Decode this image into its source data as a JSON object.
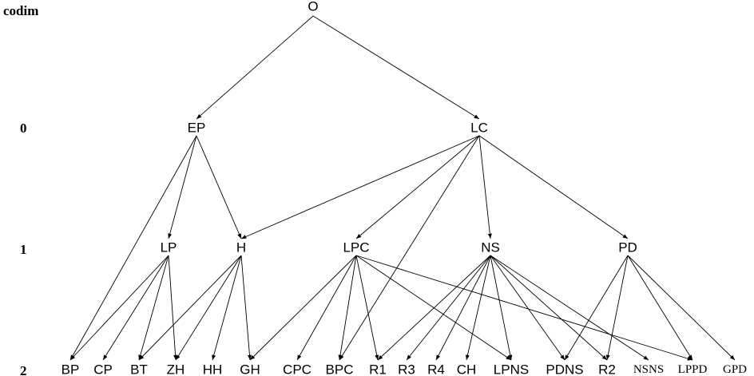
{
  "codim_header": "codim",
  "levels": [
    {
      "id": "L0",
      "label": "0"
    },
    {
      "id": "L1",
      "label": "1"
    },
    {
      "id": "L2",
      "label": "2"
    }
  ],
  "nodes": [
    {
      "id": "O",
      "label": "O",
      "level": "root"
    },
    {
      "id": "EP",
      "label": "EP",
      "level": "L0"
    },
    {
      "id": "LC",
      "label": "LC",
      "level": "L0"
    },
    {
      "id": "LP",
      "label": "LP",
      "level": "L1"
    },
    {
      "id": "H",
      "label": "H",
      "level": "L1"
    },
    {
      "id": "LPC",
      "label": "LPC",
      "level": "L1"
    },
    {
      "id": "NS",
      "label": "NS",
      "level": "L1"
    },
    {
      "id": "PD",
      "label": "PD",
      "level": "L1"
    },
    {
      "id": "BP",
      "label": "BP",
      "level": "L2"
    },
    {
      "id": "CP",
      "label": "CP",
      "level": "L2"
    },
    {
      "id": "BT",
      "label": "BT",
      "level": "L2"
    },
    {
      "id": "ZH",
      "label": "ZH",
      "level": "L2"
    },
    {
      "id": "HH",
      "label": "HH",
      "level": "L2"
    },
    {
      "id": "GH",
      "label": "GH",
      "level": "L2"
    },
    {
      "id": "CPC",
      "label": "CPC",
      "level": "L2"
    },
    {
      "id": "BPC",
      "label": "BPC",
      "level": "L2"
    },
    {
      "id": "R1",
      "label": "R1",
      "level": "L2"
    },
    {
      "id": "R3",
      "label": "R3",
      "level": "L2"
    },
    {
      "id": "R4",
      "label": "R4",
      "level": "L2"
    },
    {
      "id": "CH",
      "label": "CH",
      "level": "L2"
    },
    {
      "id": "LPNS",
      "label": "LPNS",
      "level": "L2"
    },
    {
      "id": "PDNS",
      "label": "PDNS",
      "level": "L2"
    },
    {
      "id": "R2",
      "label": "R2",
      "level": "L2"
    },
    {
      "id": "NSNS",
      "label": "NSNS",
      "level": "L2"
    },
    {
      "id": "LPPD",
      "label": "LPPD",
      "level": "L2"
    },
    {
      "id": "GPD",
      "label": "GPD",
      "level": "L2"
    }
  ],
  "edges": [
    [
      "O",
      "EP"
    ],
    [
      "O",
      "LC"
    ],
    [
      "EP",
      "BP"
    ],
    [
      "EP",
      "LP"
    ],
    [
      "EP",
      "H"
    ],
    [
      "LC",
      "H"
    ],
    [
      "LC",
      "LPC"
    ],
    [
      "LC",
      "BPC"
    ],
    [
      "LC",
      "NS"
    ],
    [
      "LC",
      "PD"
    ],
    [
      "LP",
      "BP"
    ],
    [
      "LP",
      "CP"
    ],
    [
      "LP",
      "BT"
    ],
    [
      "LP",
      "ZH"
    ],
    [
      "H",
      "BT"
    ],
    [
      "H",
      "ZH"
    ],
    [
      "H",
      "HH"
    ],
    [
      "H",
      "GH"
    ],
    [
      "LPC",
      "GH"
    ],
    [
      "LPC",
      "CPC"
    ],
    [
      "LPC",
      "BPC"
    ],
    [
      "LPC",
      "R1"
    ],
    [
      "LPC",
      "LPNS"
    ],
    [
      "LPC",
      "LPPD"
    ],
    [
      "NS",
      "R1"
    ],
    [
      "NS",
      "R3"
    ],
    [
      "NS",
      "R4"
    ],
    [
      "NS",
      "CH"
    ],
    [
      "NS",
      "LPNS"
    ],
    [
      "NS",
      "PDNS"
    ],
    [
      "NS",
      "R2"
    ],
    [
      "NS",
      "NSNS"
    ],
    [
      "PD",
      "PDNS"
    ],
    [
      "PD",
      "R2"
    ],
    [
      "PD",
      "LPPD"
    ],
    [
      "PD",
      "GPD"
    ]
  ]
}
